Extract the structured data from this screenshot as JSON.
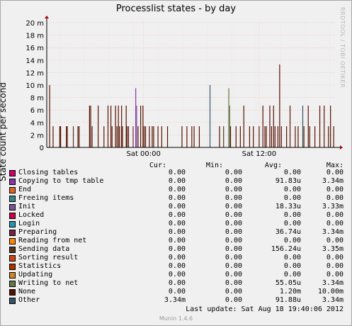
{
  "chart_data": {
    "type": "area",
    "title": "Processlist states - by day",
    "ylabel": "State count per second",
    "xlabel": "",
    "ylim": [
      0,
      0.02
    ],
    "yticks": [
      0,
      0.002,
      0.004,
      0.006,
      0.008,
      0.01,
      0.012,
      0.014,
      0.016,
      0.018,
      0.02
    ],
    "ytick_labels": [
      "0",
      "2 m",
      "4 m",
      "6 m",
      "8 m",
      "10 m",
      "12 m",
      "14 m",
      "16 m",
      "18 m",
      "20 m"
    ],
    "xtick_labels": [
      "Sat 00:00",
      "Sat 12:00"
    ],
    "grid": true,
    "legend_headers": {
      "cur": "Cur:",
      "min": "Min:",
      "avg": "Avg:",
      "max": "Max:"
    },
    "series": [
      {
        "name": "Closing tables",
        "color": "#cc0066",
        "cur": "0.00",
        "min": "0.00",
        "avg": "0.00",
        "max": "0.00"
      },
      {
        "name": "Copying to tmp table",
        "color": "#8833aa",
        "cur": "0.00",
        "min": "0.00",
        "avg": "91.83u",
        "max": "3.34m"
      },
      {
        "name": "End",
        "color": "#dd6622",
        "cur": "0.00",
        "min": "0.00",
        "avg": "0.00",
        "max": "0.00"
      },
      {
        "name": "Freeing items",
        "color": "#338888",
        "cur": "0.00",
        "min": "0.00",
        "avg": "0.00",
        "max": "0.00"
      },
      {
        "name": "Init",
        "color": "#775599",
        "cur": "0.00",
        "min": "0.00",
        "avg": "18.33u",
        "max": "3.33m"
      },
      {
        "name": "Locked",
        "color": "#cc0044",
        "cur": "0.00",
        "min": "0.00",
        "avg": "0.00",
        "max": "0.00"
      },
      {
        "name": "Login",
        "color": "#2299aa",
        "cur": "0.00",
        "min": "0.00",
        "avg": "0.00",
        "max": "0.00"
      },
      {
        "name": "Preparing",
        "color": "#772244",
        "cur": "0.00",
        "min": "0.00",
        "avg": "36.74u",
        "max": "3.34m"
      },
      {
        "name": "Reading from net",
        "color": "#ff8800",
        "cur": "0.00",
        "min": "0.00",
        "avg": "0.00",
        "max": "0.00"
      },
      {
        "name": "Sending data",
        "color": "#553322",
        "cur": "0.00",
        "min": "0.00",
        "avg": "156.24u",
        "max": "3.35m"
      },
      {
        "name": "Sorting result",
        "color": "#cc4411",
        "cur": "0.00",
        "min": "0.00",
        "avg": "0.00",
        "max": "0.00"
      },
      {
        "name": "Statistics",
        "color": "#aa3300",
        "cur": "0.00",
        "min": "0.00",
        "avg": "0.00",
        "max": "0.00"
      },
      {
        "name": "Updating",
        "color": "#cc8822",
        "cur": "0.00",
        "min": "0.00",
        "avg": "0.00",
        "max": "0.00"
      },
      {
        "name": "Writing to net",
        "color": "#667744",
        "cur": "0.00",
        "min": "0.00",
        "avg": "55.05u",
        "max": "3.34m"
      },
      {
        "name": "None",
        "color": "#551100",
        "cur": "0.00",
        "min": "0.00",
        "avg": "1.20m",
        "max": "10.00m"
      },
      {
        "name": "Other",
        "color": "#335566",
        "cur": "3.34m",
        "min": "0.00",
        "avg": "91.88u",
        "max": "3.34m"
      }
    ],
    "spikes": [
      {
        "t": 0.01,
        "v": 0.01,
        "s": "None"
      },
      {
        "t": 0.022,
        "v": 0.0034,
        "s": "None"
      },
      {
        "t": 0.045,
        "v": 0.0034,
        "s": "None"
      },
      {
        "t": 0.048,
        "v": 0.0034,
        "s": "None"
      },
      {
        "t": 0.068,
        "v": 0.0034,
        "s": "None"
      },
      {
        "t": 0.071,
        "v": 0.0034,
        "s": "None"
      },
      {
        "t": 0.092,
        "v": 0.0034,
        "s": "Sending data"
      },
      {
        "t": 0.108,
        "v": 0.0034,
        "s": "None"
      },
      {
        "t": 0.112,
        "v": 0.0034,
        "s": "None"
      },
      {
        "t": 0.148,
        "v": 0.0067,
        "s": "None"
      },
      {
        "t": 0.152,
        "v": 0.0067,
        "s": "None"
      },
      {
        "t": 0.157,
        "v": 0.0034,
        "s": "None"
      },
      {
        "t": 0.178,
        "v": 0.0067,
        "s": "None"
      },
      {
        "t": 0.198,
        "v": 0.0034,
        "s": "None"
      },
      {
        "t": 0.212,
        "v": 0.0067,
        "s": "None"
      },
      {
        "t": 0.222,
        "v": 0.0067,
        "s": "None"
      },
      {
        "t": 0.226,
        "v": 0.0034,
        "s": "None"
      },
      {
        "t": 0.238,
        "v": 0.0067,
        "s": "None"
      },
      {
        "t": 0.243,
        "v": 0.0034,
        "s": "None"
      },
      {
        "t": 0.248,
        "v": 0.0067,
        "s": "None"
      },
      {
        "t": 0.252,
        "v": 0.0034,
        "s": "None"
      },
      {
        "t": 0.259,
        "v": 0.0067,
        "s": "None"
      },
      {
        "t": 0.262,
        "v": 0.0034,
        "s": "None"
      },
      {
        "t": 0.275,
        "v": 0.0067,
        "s": "None"
      },
      {
        "t": 0.278,
        "v": 0.0034,
        "s": "None"
      },
      {
        "t": 0.283,
        "v": 0.0034,
        "s": "None"
      },
      {
        "t": 0.299,
        "v": 0.0034,
        "s": "Preparing"
      },
      {
        "t": 0.308,
        "v": 0.0095,
        "s": "Copying to tmp table"
      },
      {
        "t": 0.311,
        "v": 0.0067,
        "s": "Init"
      },
      {
        "t": 0.316,
        "v": 0.0034,
        "s": "None"
      },
      {
        "t": 0.325,
        "v": 0.0067,
        "s": "None"
      },
      {
        "t": 0.333,
        "v": 0.0067,
        "s": "None"
      },
      {
        "t": 0.337,
        "v": 0.0034,
        "s": "None"
      },
      {
        "t": 0.342,
        "v": 0.0034,
        "s": "None"
      },
      {
        "t": 0.355,
        "v": 0.0034,
        "s": "None"
      },
      {
        "t": 0.365,
        "v": 0.0034,
        "s": "None"
      },
      {
        "t": 0.37,
        "v": 0.0034,
        "s": "None"
      },
      {
        "t": 0.385,
        "v": 0.0034,
        "s": "None"
      },
      {
        "t": 0.398,
        "v": 0.0034,
        "s": "None"
      },
      {
        "t": 0.418,
        "v": 0.0034,
        "s": "None"
      },
      {
        "t": 0.468,
        "v": 0.0034,
        "s": "None"
      },
      {
        "t": 0.485,
        "v": 0.0034,
        "s": "None"
      },
      {
        "t": 0.502,
        "v": 0.0034,
        "s": "None"
      },
      {
        "t": 0.51,
        "v": 0.0034,
        "s": "None"
      },
      {
        "t": 0.528,
        "v": 0.0034,
        "s": "None"
      },
      {
        "t": 0.565,
        "v": 0.01,
        "s": "Other"
      },
      {
        "t": 0.598,
        "v": 0.0034,
        "s": "None"
      },
      {
        "t": 0.612,
        "v": 0.0034,
        "s": "Sending data"
      },
      {
        "t": 0.63,
        "v": 0.0095,
        "s": "Writing to net"
      },
      {
        "t": 0.633,
        "v": 0.0067,
        "s": "Writing to net"
      },
      {
        "t": 0.636,
        "v": 0.0034,
        "s": "None"
      },
      {
        "t": 0.655,
        "v": 0.0034,
        "s": "None"
      },
      {
        "t": 0.67,
        "v": 0.0034,
        "s": "None"
      },
      {
        "t": 0.682,
        "v": 0.0067,
        "s": "None"
      },
      {
        "t": 0.702,
        "v": 0.0034,
        "s": "None"
      },
      {
        "t": 0.715,
        "v": 0.0034,
        "s": "None"
      },
      {
        "t": 0.735,
        "v": 0.0034,
        "s": "None"
      },
      {
        "t": 0.748,
        "v": 0.0067,
        "s": "None"
      },
      {
        "t": 0.755,
        "v": 0.0034,
        "s": "None"
      },
      {
        "t": 0.76,
        "v": 0.0034,
        "s": "None"
      },
      {
        "t": 0.772,
        "v": 0.0067,
        "s": "None"
      },
      {
        "t": 0.778,
        "v": 0.0034,
        "s": "None"
      },
      {
        "t": 0.785,
        "v": 0.0067,
        "s": "None"
      },
      {
        "t": 0.79,
        "v": 0.0034,
        "s": "None"
      },
      {
        "t": 0.8,
        "v": 0.0034,
        "s": "None"
      },
      {
        "t": 0.806,
        "v": 0.0133,
        "s": "None"
      },
      {
        "t": 0.812,
        "v": 0.0034,
        "s": "None"
      },
      {
        "t": 0.83,
        "v": 0.0034,
        "s": "None"
      },
      {
        "t": 0.842,
        "v": 0.0067,
        "s": "None"
      },
      {
        "t": 0.86,
        "v": 0.0034,
        "s": "None"
      },
      {
        "t": 0.87,
        "v": 0.0034,
        "s": "None"
      },
      {
        "t": 0.886,
        "v": 0.0067,
        "s": "Other"
      },
      {
        "t": 0.89,
        "v": 0.0034,
        "s": "None"
      },
      {
        "t": 0.905,
        "v": 0.0067,
        "s": "None"
      },
      {
        "t": 0.91,
        "v": 0.0034,
        "s": "None"
      },
      {
        "t": 0.928,
        "v": 0.0034,
        "s": "None"
      },
      {
        "t": 0.945,
        "v": 0.0067,
        "s": "None"
      },
      {
        "t": 0.96,
        "v": 0.0067,
        "s": "None"
      },
      {
        "t": 0.975,
        "v": 0.0034,
        "s": "None"
      },
      {
        "t": 0.982,
        "v": 0.0067,
        "s": "None"
      },
      {
        "t": 0.993,
        "v": 0.0034,
        "s": "None"
      }
    ]
  },
  "last_update": "Last update:  Sat Aug 18 19:40:06 2012",
  "watermark": "RRDTOOL / TOBI OETIKER",
  "munin_version": "Munin 1.4.6"
}
